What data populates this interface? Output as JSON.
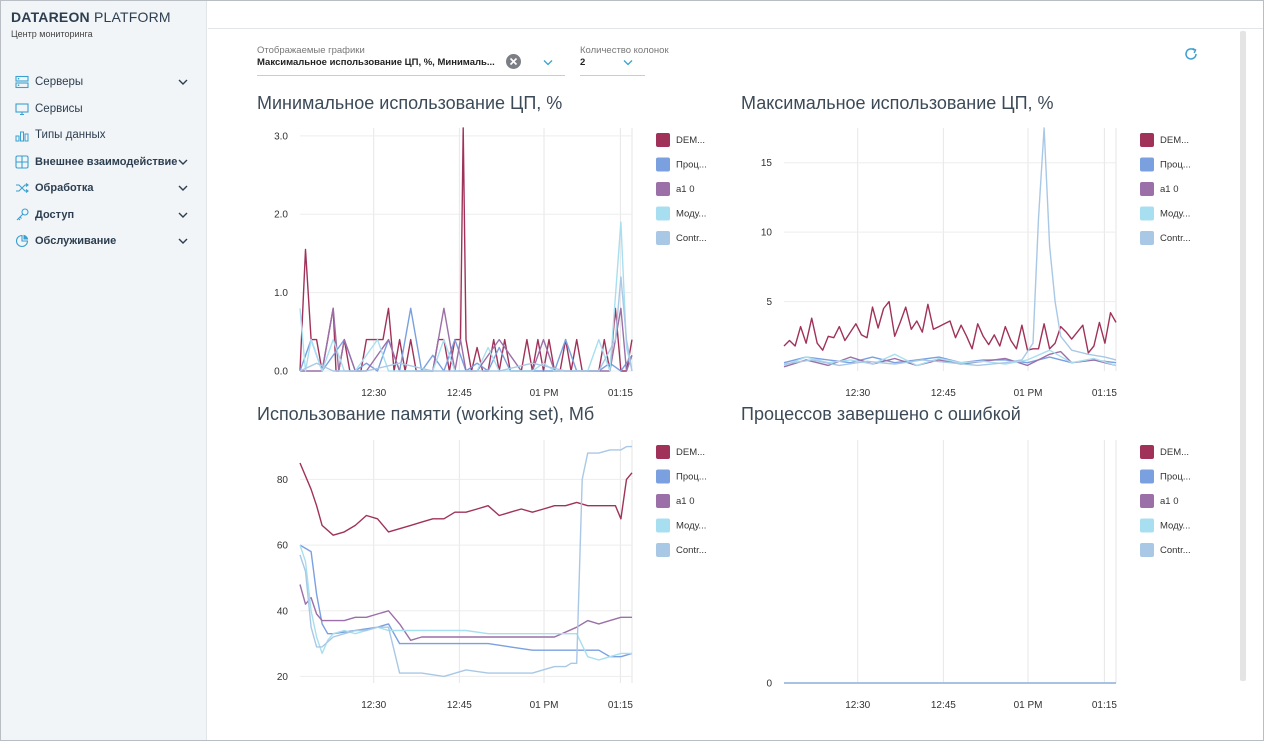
{
  "app": {
    "brand_strong": "DATAREON",
    "brand_light": " PLATFORM",
    "subtitle": "Центр мониторинга"
  },
  "sidebar": {
    "items": [
      {
        "label": "Серверы",
        "icon": "servers-icon",
        "bold": false,
        "expandable": true
      },
      {
        "label": "Сервисы",
        "icon": "monitor-icon",
        "bold": false,
        "expandable": false
      },
      {
        "label": "Типы данных",
        "icon": "data-types-icon",
        "bold": false,
        "expandable": false
      },
      {
        "label": "Внешнее взаимодействие",
        "icon": "grid-icon",
        "bold": true,
        "expandable": true
      },
      {
        "label": "Обработка",
        "icon": "shuffle-icon",
        "bold": true,
        "expandable": true
      },
      {
        "label": "Доступ",
        "icon": "key-icon",
        "bold": true,
        "expandable": true
      },
      {
        "label": "Обслуживание",
        "icon": "pie-icon",
        "bold": true,
        "expandable": true
      }
    ]
  },
  "filters": {
    "charts_label": "Отображаемые графики",
    "charts_value": "Максимальное использование ЦП, %, Минималь...",
    "columns_label": "Количество колонок",
    "columns_value": "2"
  },
  "colors": {
    "series": [
      "#a0325a",
      "#7aa0e0",
      "#9b6fa8",
      "#a8dff0",
      "#a9c8e6"
    ],
    "accent": "#3aa0d0",
    "sidebar_bg": "#f2f5f7"
  },
  "legend": [
    "DEM...",
    "Проц...",
    "a1 0",
    "Моду...",
    "Contr..."
  ],
  "chart_data": [
    {
      "type": "line",
      "title": "Минимальное использование ЦП, %",
      "x_ticks": [
        "12:30",
        "12:45",
        "01 PM",
        "01:15"
      ],
      "y_ticks": [
        "0.0",
        "1.0",
        "2.0",
        "3.0"
      ],
      "ylim": [
        0,
        3.1
      ],
      "x_range": [
        0,
        60
      ],
      "series": [
        {
          "name": "DEM...",
          "x": [
            0,
            1,
            2,
            3,
            4,
            5,
            6,
            6.5,
            7,
            8,
            9,
            10,
            11,
            12,
            13,
            14,
            15,
            16,
            17,
            18,
            19,
            20,
            21,
            22,
            23,
            24,
            25,
            26,
            27,
            28,
            29,
            29.5,
            30,
            31,
            32,
            33,
            34,
            35,
            36,
            37,
            38,
            39,
            40,
            41,
            42,
            43,
            44,
            45,
            46,
            47,
            48,
            49,
            50,
            51,
            52,
            53,
            54,
            55,
            56,
            57,
            58,
            59,
            60
          ],
          "y": [
            0,
            1.55,
            0.4,
            0.4,
            0,
            0.4,
            0.8,
            0,
            0,
            0.4,
            0,
            0,
            0,
            0.4,
            0.4,
            0.4,
            0.4,
            0.8,
            0,
            0.4,
            0,
            0.4,
            0,
            0,
            0,
            0,
            0.4,
            0.4,
            0,
            0.4,
            0.4,
            3.1,
            0.4,
            0,
            0.3,
            0,
            0,
            0.4,
            0,
            0.4,
            0,
            0,
            0,
            0.4,
            0,
            0.4,
            0,
            0.4,
            0,
            0,
            0.4,
            0,
            0.4,
            0,
            0,
            0,
            0,
            0.4,
            0,
            0.8,
            0,
            0,
            0.4
          ]
        },
        {
          "name": "Проц...",
          "x": [
            0,
            2,
            4,
            8,
            10,
            12,
            14,
            16,
            18,
            20,
            22,
            24,
            26,
            28,
            30,
            32,
            34,
            36,
            38,
            40,
            42,
            44,
            46,
            48,
            50,
            52,
            54,
            56,
            58,
            60
          ],
          "y": [
            0,
            0.4,
            0,
            0.4,
            0,
            0.1,
            0,
            0.4,
            0,
            0.8,
            0,
            0.2,
            0,
            0.4,
            0,
            0.1,
            0,
            0.3,
            0,
            0,
            0,
            0,
            0,
            0.4,
            0,
            0,
            0,
            0.1,
            0,
            0.2
          ]
        },
        {
          "name": "a1 0",
          "x": [
            0,
            2,
            4,
            6,
            7,
            8,
            10,
            12,
            16,
            18,
            22,
            24,
            26,
            28,
            29,
            30,
            32,
            36,
            40,
            42,
            44,
            46,
            48,
            50,
            54,
            56,
            58,
            59,
            60
          ],
          "y": [
            0,
            0,
            0,
            0.8,
            0,
            0.4,
            0,
            0,
            0.4,
            0,
            0,
            0,
            0.8,
            0,
            0.4,
            0,
            0,
            0.4,
            0,
            0,
            0.4,
            0,
            0,
            0,
            0,
            0,
            0.8,
            0,
            0.2
          ]
        },
        {
          "name": "Моду...",
          "x": [
            0,
            1,
            2,
            4,
            6,
            8,
            10,
            14,
            16,
            18,
            20,
            22,
            24,
            26,
            28,
            30,
            32,
            34,
            36,
            38,
            40,
            42,
            44,
            46,
            48,
            50,
            52,
            54,
            56,
            58,
            59,
            60
          ],
          "y": [
            0.8,
            0,
            0.4,
            0,
            0.4,
            0,
            0,
            0.4,
            0,
            0,
            0,
            0,
            0,
            0.4,
            0,
            0,
            0,
            0.3,
            0,
            0,
            0,
            0,
            0.1,
            0,
            0,
            0,
            0,
            0.4,
            0,
            1.9,
            0.3,
            0
          ]
        },
        {
          "name": "Contr...",
          "x": [
            0,
            3,
            6,
            12,
            18,
            24,
            30,
            36,
            42,
            48,
            54,
            57,
            58,
            59,
            60
          ],
          "y": [
            0,
            0.1,
            0,
            0,
            0.1,
            0,
            0,
            0,
            0.1,
            0,
            0,
            0.4,
            1.2,
            0.4,
            0
          ]
        }
      ]
    },
    {
      "type": "line",
      "title": "Максимальное использование ЦП, %",
      "x_ticks": [
        "12:30",
        "12:45",
        "01 PM",
        "01:15"
      ],
      "y_ticks": [
        "5",
        "10",
        "15"
      ],
      "ylim": [
        0,
        17.5
      ],
      "x_range": [
        0,
        60
      ],
      "series": [
        {
          "name": "DEM...",
          "x": [
            0,
            1,
            2,
            3,
            4,
            5,
            6,
            7,
            8,
            9,
            10,
            11,
            12,
            13,
            14,
            15,
            16,
            17,
            18,
            19,
            20,
            21,
            22,
            23,
            24,
            25,
            26,
            27,
            28,
            29,
            30,
            31,
            32,
            33,
            34,
            35,
            36,
            37,
            38,
            39,
            40,
            41,
            42,
            43,
            44,
            45,
            46,
            47,
            48,
            49,
            50,
            51,
            52,
            53,
            54,
            55,
            56,
            57,
            58,
            59,
            60
          ],
          "y": [
            1.8,
            2.2,
            1.8,
            3.2,
            2,
            3.8,
            2,
            1.5,
            2.5,
            2.4,
            3.2,
            2.2,
            2.8,
            3.4,
            2.6,
            2.4,
            4.6,
            3.1,
            4.5,
            5,
            2.5,
            3.5,
            4.6,
            3,
            3.6,
            2.8,
            4.8,
            3,
            3.2,
            3.4,
            3.6,
            2.4,
            3.3,
            2.5,
            1.6,
            3.4,
            2.5,
            1.9,
            2.6,
            1.8,
            3.2,
            2.2,
            1.6,
            3.3,
            1.5,
            1.6,
            1.6,
            3.4,
            1.6,
            2,
            3.2,
            2.8,
            2.3,
            2.8,
            3.3,
            1.3,
            1.8,
            3.5,
            2,
            4.2,
            3.5
          ]
        },
        {
          "name": "Проц...",
          "x": [
            0,
            4,
            8,
            12,
            16,
            20,
            24,
            28,
            32,
            36,
            40,
            44,
            48,
            52,
            56,
            60
          ],
          "y": [
            0.6,
            1,
            0.8,
            0.6,
            1,
            0.6,
            0.8,
            1,
            0.6,
            0.8,
            0.8,
            0.6,
            1,
            0.6,
            0.8,
            0.6
          ]
        },
        {
          "name": "a1 0",
          "x": [
            0,
            4,
            8,
            12,
            16,
            20,
            24,
            28,
            32,
            36,
            40,
            44,
            48,
            50,
            52,
            56,
            60
          ],
          "y": [
            0.3,
            0.8,
            0.4,
            1,
            0.5,
            0.9,
            0.4,
            0.8,
            0.5,
            0.7,
            0.9,
            0.4,
            1.2,
            1.4,
            0.6,
            0.8,
            0.4
          ]
        },
        {
          "name": "Моду...",
          "x": [
            0,
            4,
            8,
            12,
            16,
            20,
            24,
            28,
            32,
            36,
            40,
            44,
            48,
            52,
            56,
            60
          ],
          "y": [
            0.4,
            1,
            0.6,
            0.8,
            0.5,
            1.2,
            0.4,
            0.9,
            0.6,
            0.7,
            0.5,
            0.8,
            1.5,
            0.6,
            0.9,
            0.4
          ]
        },
        {
          "name": "Contr...",
          "x": [
            0,
            5,
            10,
            15,
            20,
            25,
            30,
            35,
            40,
            43,
            45,
            46,
            47,
            48,
            49,
            50,
            52,
            55,
            58,
            60
          ],
          "y": [
            0.5,
            0.8,
            0.4,
            0.7,
            0.5,
            0.8,
            0.6,
            0.4,
            0.6,
            0.8,
            2,
            11,
            17.5,
            9,
            5,
            2.5,
            1.5,
            1.2,
            1,
            0.8
          ]
        }
      ]
    },
    {
      "type": "line",
      "title": "Использование памяти (working set), Мб",
      "x_ticks": [
        "12:30",
        "12:45",
        "01 PM",
        "01:15"
      ],
      "y_ticks": [
        "20",
        "40",
        "60",
        "80"
      ],
      "ylim": [
        18,
        92
      ],
      "x_range": [
        0,
        60
      ],
      "series": [
        {
          "name": "DEM...",
          "x": [
            0,
            2,
            3,
            4,
            6,
            8,
            10,
            12,
            14,
            16,
            18,
            20,
            22,
            24,
            26,
            28,
            30,
            32,
            34,
            36,
            38,
            40,
            42,
            44,
            46,
            48,
            50,
            52,
            54,
            55,
            56,
            57,
            58,
            59,
            60
          ],
          "y": [
            85,
            77,
            72,
            66,
            63,
            64,
            66,
            69,
            68,
            64,
            65,
            66,
            67,
            68,
            68,
            70,
            70,
            71,
            72,
            69,
            70,
            71,
            70,
            71,
            72,
            72,
            73,
            72,
            72,
            72,
            72,
            72,
            68,
            80,
            82
          ]
        },
        {
          "name": "Проц...",
          "x": [
            0,
            2,
            3,
            4,
            5,
            6,
            10,
            14,
            16,
            18,
            22,
            26,
            30,
            34,
            38,
            42,
            46,
            50,
            54,
            56,
            58,
            60
          ],
          "y": [
            60,
            58,
            45,
            36,
            33,
            33,
            34,
            35,
            36,
            30,
            30,
            30,
            30,
            30,
            29,
            28,
            28,
            28,
            28,
            26,
            26,
            27
          ]
        },
        {
          "name": "a1 0",
          "x": [
            0,
            1,
            2,
            3,
            4,
            5,
            6,
            8,
            10,
            12,
            14,
            16,
            18,
            20,
            22,
            26,
            30,
            34,
            38,
            42,
            46,
            50,
            52,
            54,
            56,
            58,
            60
          ],
          "y": [
            48,
            42,
            44,
            39,
            37,
            37,
            37,
            37,
            38,
            38,
            39,
            40,
            36,
            31,
            32,
            32,
            32,
            32,
            32,
            32,
            32,
            35,
            37,
            36,
            37,
            38,
            38
          ]
        },
        {
          "name": "Моду...",
          "x": [
            0,
            1,
            2,
            3,
            4,
            5,
            6,
            8,
            10,
            12,
            14,
            16,
            18,
            20,
            22,
            26,
            30,
            34,
            38,
            42,
            46,
            50,
            52,
            54,
            56,
            58,
            60
          ],
          "y": [
            60,
            55,
            40,
            32,
            27,
            31,
            33,
            34,
            33,
            34,
            35,
            34,
            34,
            34,
            34,
            34,
            34,
            33,
            33,
            33,
            33,
            33,
            26,
            25,
            26,
            27,
            27
          ]
        },
        {
          "name": "Contr...",
          "x": [
            0,
            1,
            2,
            3,
            4,
            6,
            8,
            10,
            12,
            14,
            16,
            18,
            20,
            22,
            26,
            30,
            34,
            38,
            42,
            46,
            48,
            49,
            50,
            51,
            52,
            54,
            56,
            58,
            59,
            60
          ],
          "y": [
            57,
            52,
            35,
            29,
            29,
            32,
            33,
            34,
            34,
            35,
            35,
            21,
            21,
            21,
            20,
            22,
            21,
            21,
            21,
            23,
            23,
            24,
            24,
            80,
            88,
            88,
            89,
            89,
            90,
            90
          ]
        }
      ]
    },
    {
      "type": "line",
      "title": "Процессов завершено с ошибкой",
      "x_ticks": [
        "12:30",
        "12:45",
        "01 PM",
        "01:15"
      ],
      "y_ticks": [
        "0"
      ],
      "ylim": [
        0,
        1
      ],
      "x_range": [
        0,
        60
      ],
      "series": [
        {
          "name": "DEM...",
          "x": [
            0,
            60
          ],
          "y": [
            0,
            0
          ]
        },
        {
          "name": "Проц...",
          "x": [
            0,
            60
          ],
          "y": [
            0,
            0
          ]
        },
        {
          "name": "a1 0",
          "x": [
            0,
            60
          ],
          "y": [
            0,
            0
          ]
        },
        {
          "name": "Моду...",
          "x": [
            0,
            60
          ],
          "y": [
            0,
            0
          ]
        },
        {
          "name": "Contr...",
          "x": [
            0,
            60
          ],
          "y": [
            0,
            0
          ]
        }
      ]
    }
  ]
}
